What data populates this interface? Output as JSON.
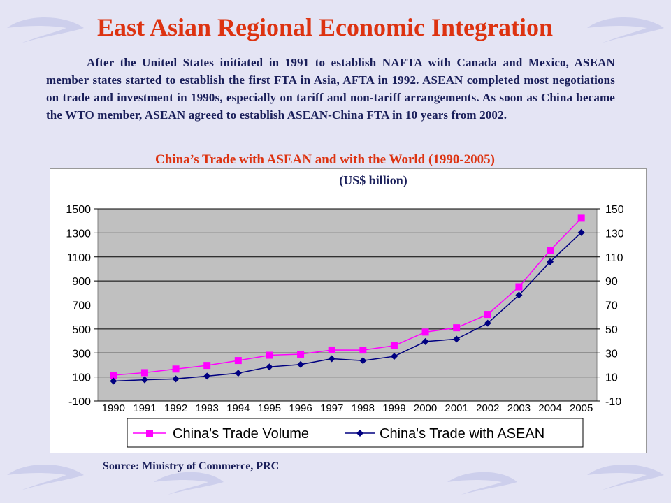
{
  "title": "East Asian Regional Economic Integration",
  "paragraph": "After the United States initiated in 1991 to establish NAFTA with Canada and Mexico, ASEAN member states started to establish the first FTA in Asia, AFTA in 1992. ASEAN completed most negotiations on trade and investment in 1990s, especially on tariff and non-tariff arrangements. As soon as China became the WTO member, ASEAN agreed to establish ASEAN-China FTA in 10 years from 2002.",
  "chart_title": "China’s Trade with ASEAN and with the World (1990-2005)",
  "chart_unit": "(US$ billion)",
  "source": "Source: Ministry of Commerce, PRC",
  "colors": {
    "title": "#dd3311",
    "text": "#1a1f5a",
    "plot_bg": "#c0c0c0",
    "trade_volume": "#ff00ff",
    "trade_asean": "#000080"
  },
  "chart_data": {
    "type": "line",
    "x": [
      "1990",
      "1991",
      "1992",
      "1993",
      "1994",
      "1995",
      "1996",
      "1997",
      "1998",
      "1999",
      "2000",
      "2001",
      "2002",
      "2003",
      "2004",
      "2005"
    ],
    "left_axis": {
      "ylim": [
        -100,
        1500
      ],
      "ticks": [
        "1500",
        "1300",
        "1100",
        "900",
        "700",
        "500",
        "300",
        "100",
        "-100"
      ]
    },
    "right_axis": {
      "ylim": [
        -10,
        150
      ],
      "ticks": [
        "150",
        "130",
        "110",
        "90",
        "70",
        "50",
        "30",
        "10",
        "-10"
      ]
    },
    "grid": true,
    "legend_position": "bottom",
    "series": [
      {
        "name": "China's Trade Volume",
        "axis": "left",
        "marker": "square",
        "values": [
          115,
          136,
          166,
          196,
          237,
          281,
          290,
          325,
          324,
          361,
          474,
          510,
          621,
          851,
          1155,
          1422
        ]
      },
      {
        "name": "China's Trade with ASEAN",
        "axis": "right",
        "marker": "diamond",
        "values": [
          6.6,
          7.7,
          8.4,
          10.7,
          13.2,
          18.4,
          20.4,
          25.2,
          23.6,
          27.2,
          39.5,
          41.6,
          54.8,
          78.2,
          105.9,
          130.4
        ]
      }
    ]
  }
}
